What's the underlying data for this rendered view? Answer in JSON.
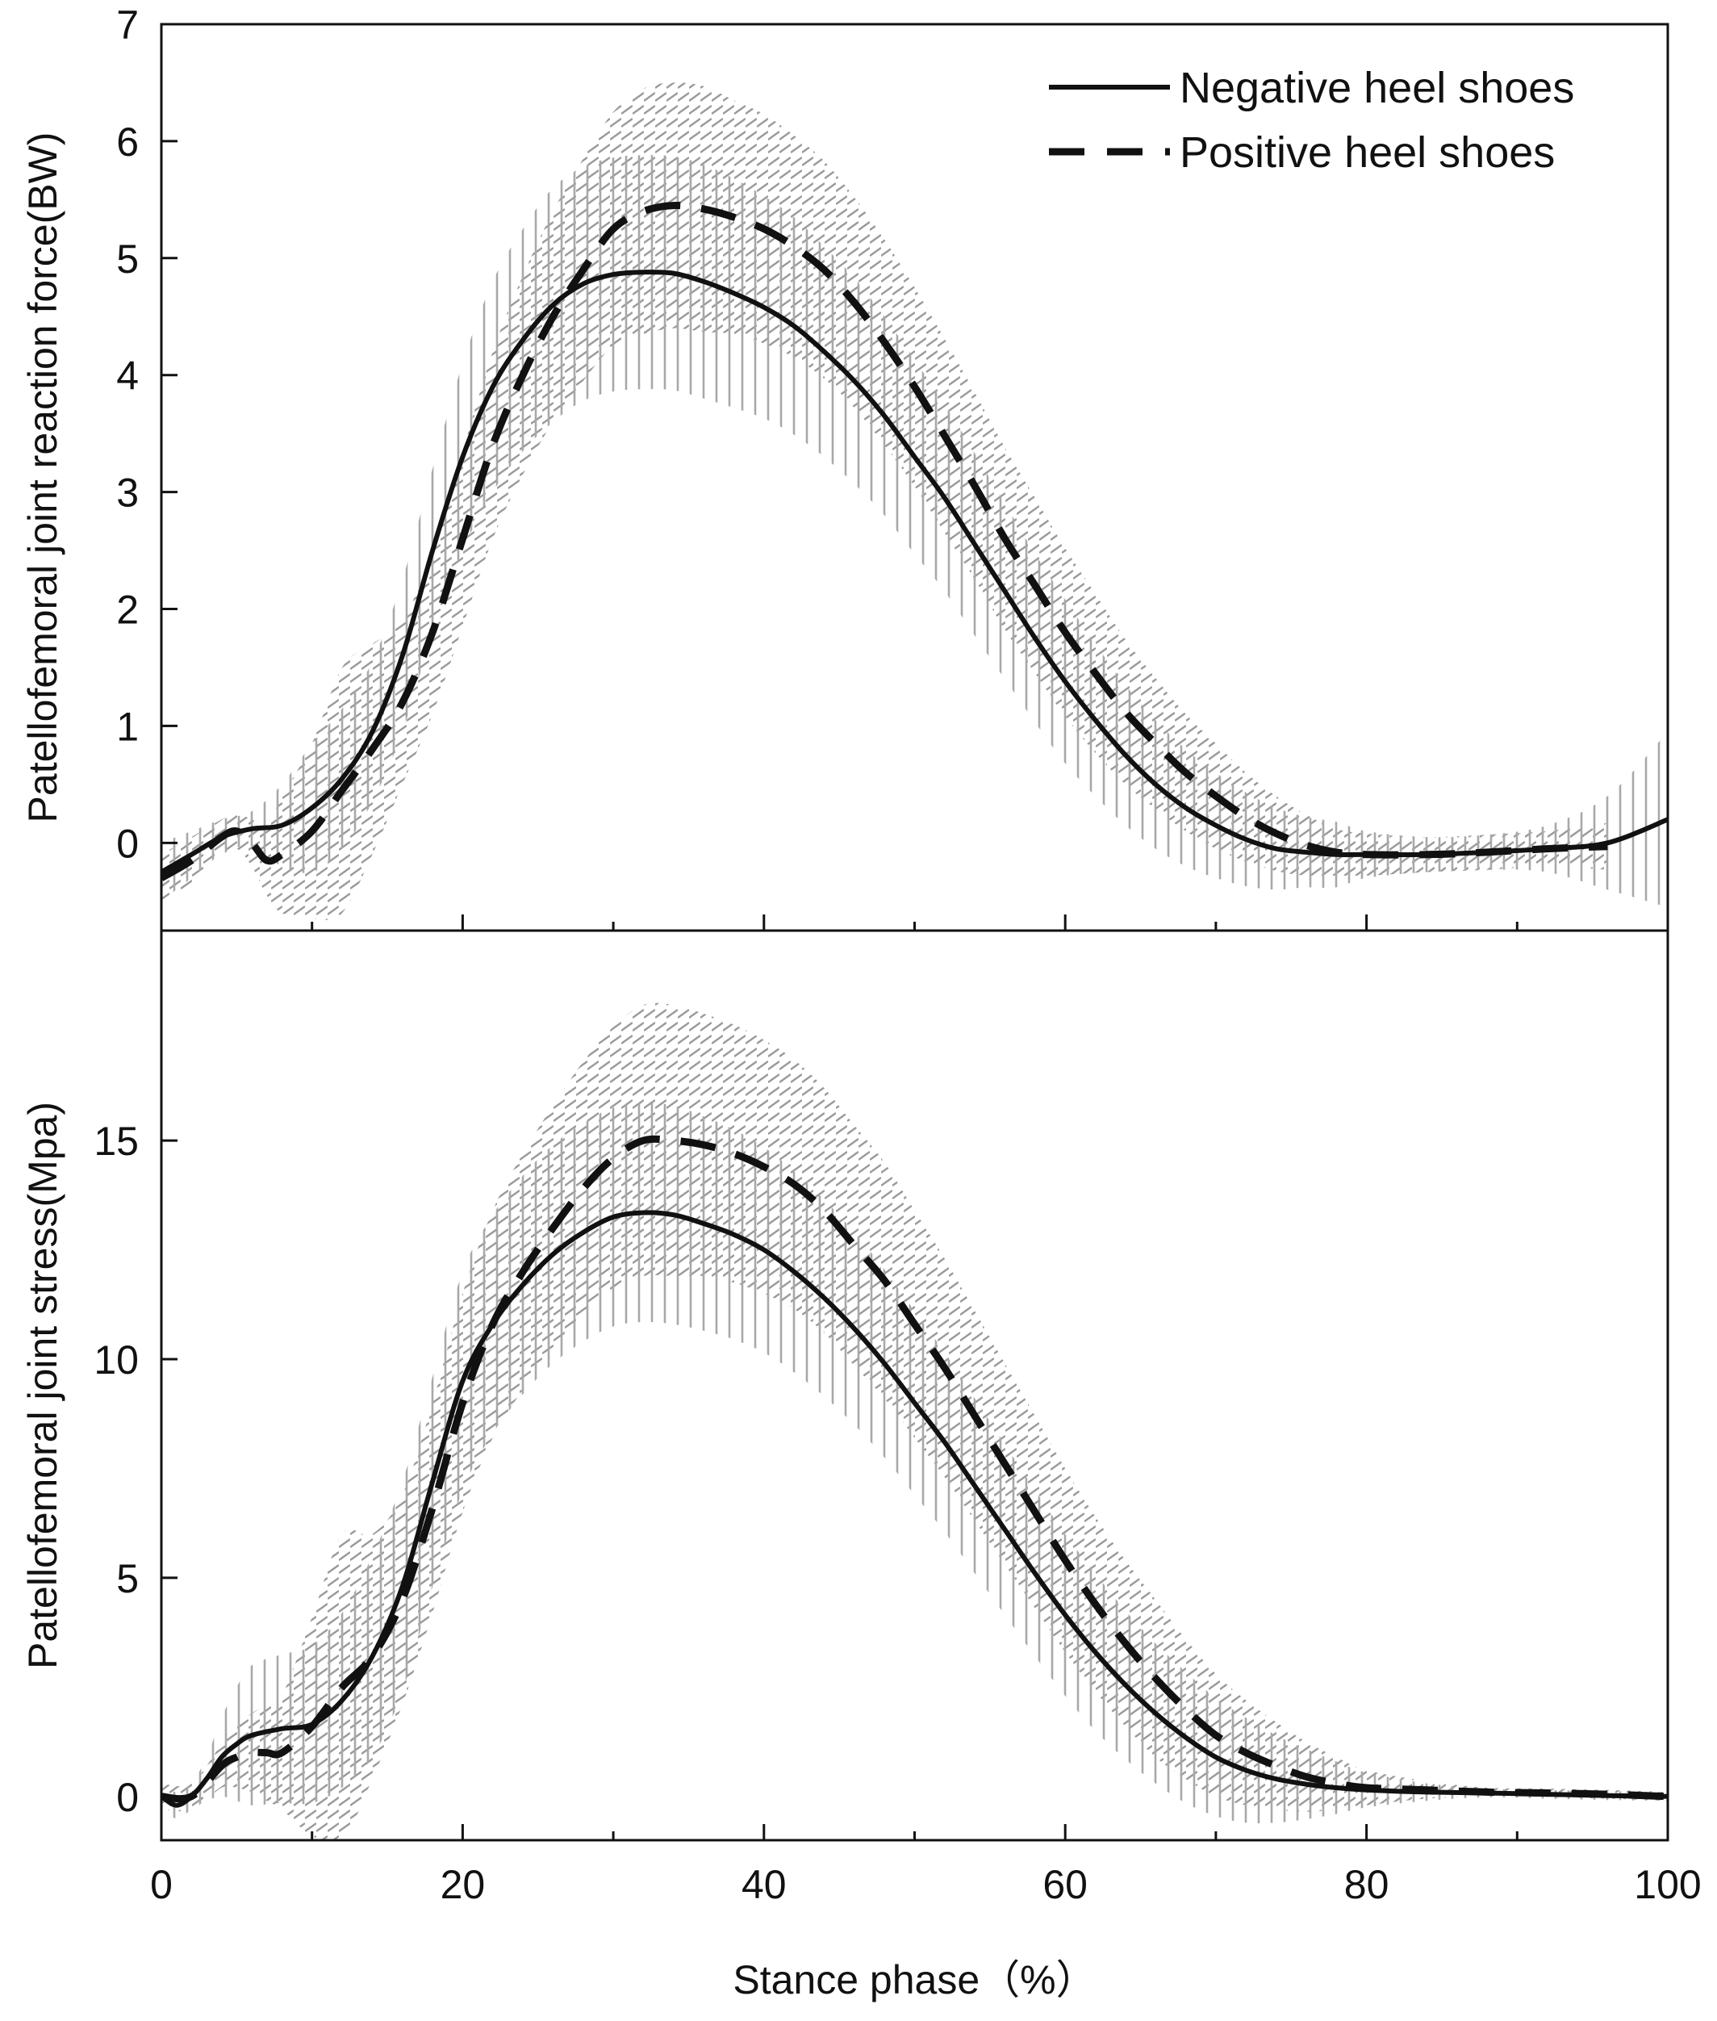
{
  "colors": {
    "line": "#111111",
    "band_negative": "#a8a8a8",
    "band_positive": "#9a9a9a",
    "background": "#ffffff"
  },
  "legend": {
    "position": "top-right",
    "items": [
      {
        "label": "Negative heel shoes",
        "style": "solid"
      },
      {
        "label": "Positive heel shoes",
        "style": "dashed"
      }
    ]
  },
  "x_axis": {
    "label": "Stance phase（%）",
    "range": [
      0,
      100
    ],
    "major_ticks": [
      0,
      20,
      40,
      60,
      80,
      100
    ],
    "minor_ticks": [
      10,
      30,
      50,
      70,
      90
    ]
  },
  "chart_data": [
    {
      "type": "line",
      "ylabel": "Patellofemoral joint reaction force(BW)",
      "xlim": [
        0,
        100
      ],
      "ylim": [
        -0.75,
        7
      ],
      "yticks": [
        0,
        1,
        2,
        3,
        4,
        5,
        6,
        7
      ],
      "grid": false,
      "shaded_error_bands": true,
      "series": [
        {
          "name": "Negative heel shoes",
          "style": "solid",
          "band": "vertical-hatch",
          "x": [
            0,
            2,
            4,
            6,
            8,
            10,
            12,
            14,
            16,
            18,
            20,
            22,
            24,
            26,
            28,
            30,
            32,
            34,
            36,
            38,
            40,
            42,
            44,
            46,
            48,
            50,
            52,
            54,
            56,
            58,
            60,
            62,
            64,
            66,
            68,
            70,
            72,
            74,
            76,
            78,
            80,
            84,
            88,
            92,
            96,
            100
          ],
          "y": [
            -0.25,
            -0.1,
            0.05,
            0.12,
            0.15,
            0.3,
            0.55,
            0.95,
            1.6,
            2.5,
            3.3,
            3.9,
            4.3,
            4.6,
            4.78,
            4.86,
            4.88,
            4.87,
            4.8,
            4.7,
            4.58,
            4.42,
            4.2,
            3.95,
            3.65,
            3.3,
            2.95,
            2.55,
            2.15,
            1.75,
            1.38,
            1.05,
            0.75,
            0.5,
            0.3,
            0.15,
            0.03,
            -0.05,
            -0.08,
            -0.1,
            -0.1,
            -0.1,
            -0.08,
            -0.05,
            0.0,
            0.2
          ],
          "sd": [
            0.25,
            0.2,
            0.15,
            0.15,
            0.35,
            0.55,
            0.6,
            0.6,
            0.65,
            0.7,
            0.8,
            0.9,
            0.95,
            1.0,
            1.0,
            1.0,
            1.0,
            1.0,
            1.0,
            0.98,
            0.95,
            0.93,
            0.9,
            0.88,
            0.85,
            0.83,
            0.8,
            0.78,
            0.75,
            0.72,
            0.7,
            0.65,
            0.6,
            0.55,
            0.5,
            0.45,
            0.4,
            0.35,
            0.3,
            0.28,
            0.2,
            0.15,
            0.15,
            0.2,
            0.4,
            0.75
          ]
        },
        {
          "name": "Positive heel shoes",
          "style": "dashed",
          "band": "diagonal-hatch",
          "x": [
            0,
            2,
            4,
            5,
            6,
            7,
            8,
            10,
            12,
            14,
            16,
            18,
            20,
            22,
            24,
            26,
            28,
            30,
            32,
            34,
            36,
            38,
            40,
            42,
            44,
            46,
            48,
            50,
            52,
            54,
            56,
            58,
            60,
            62,
            64,
            66,
            68,
            70,
            72,
            74,
            76,
            78,
            80,
            84,
            88,
            92,
            96
          ],
          "y": [
            -0.3,
            -0.15,
            0.05,
            0.1,
            0.0,
            -0.15,
            -0.1,
            0.1,
            0.45,
            0.8,
            1.2,
            1.8,
            2.6,
            3.4,
            4.0,
            4.5,
            4.9,
            5.25,
            5.4,
            5.45,
            5.42,
            5.35,
            5.25,
            5.1,
            4.9,
            4.62,
            4.28,
            3.9,
            3.48,
            3.05,
            2.6,
            2.2,
            1.8,
            1.45,
            1.12,
            0.85,
            0.6,
            0.4,
            0.22,
            0.08,
            -0.02,
            -0.08,
            -0.1,
            -0.1,
            -0.08,
            -0.05,
            -0.03
          ],
          "sd": [
            0.2,
            0.2,
            0.15,
            0.15,
            0.2,
            0.3,
            0.5,
            0.75,
            1.05,
            0.9,
            0.7,
            0.7,
            0.75,
            0.8,
            0.85,
            0.9,
            0.95,
            1.0,
            1.05,
            1.05,
            1.05,
            1.0,
            0.98,
            0.95,
            0.93,
            0.9,
            0.88,
            0.85,
            0.83,
            0.8,
            0.78,
            0.75,
            0.72,
            0.68,
            0.62,
            0.56,
            0.5,
            0.45,
            0.38,
            0.32,
            0.26,
            0.2,
            0.18,
            0.15,
            0.15,
            0.15,
            0.2
          ]
        }
      ]
    },
    {
      "type": "line",
      "ylabel": "Patellofemoral joint stress(Mpa)",
      "xlim": [
        0,
        100
      ],
      "ylim": [
        -1,
        19.8
      ],
      "yticks": [
        0,
        5,
        10,
        15
      ],
      "grid": false,
      "shaded_error_bands": true,
      "series": [
        {
          "name": "Negative heel shoes",
          "style": "solid",
          "band": "vertical-hatch",
          "x": [
            0,
            1,
            2,
            3,
            4,
            5,
            6,
            8,
            10,
            12,
            14,
            16,
            18,
            20,
            22,
            24,
            26,
            28,
            30,
            32,
            34,
            36,
            38,
            40,
            42,
            44,
            46,
            48,
            50,
            52,
            54,
            56,
            58,
            60,
            62,
            64,
            66,
            68,
            70,
            72,
            74,
            76,
            78,
            80,
            84,
            88,
            92,
            96,
            100
          ],
          "y": [
            0.0,
            -0.2,
            0.0,
            0.4,
            0.9,
            1.2,
            1.4,
            1.55,
            1.65,
            2.2,
            3.2,
            4.8,
            7.2,
            9.5,
            10.8,
            11.7,
            12.4,
            12.9,
            13.25,
            13.35,
            13.3,
            13.1,
            12.85,
            12.5,
            12.0,
            11.4,
            10.7,
            9.9,
            9.0,
            8.1,
            7.1,
            6.1,
            5.1,
            4.15,
            3.3,
            2.55,
            1.9,
            1.35,
            0.9,
            0.6,
            0.4,
            0.28,
            0.2,
            0.15,
            0.1,
            0.08,
            0.05,
            0.02,
            0.0
          ],
          "sd": [
            0.3,
            0.3,
            0.3,
            0.5,
            0.9,
            1.3,
            1.6,
            1.7,
            1.8,
            2.0,
            2.3,
            2.4,
            2.4,
            2.5,
            2.5,
            2.5,
            2.5,
            2.5,
            2.5,
            2.5,
            2.5,
            2.45,
            2.4,
            2.35,
            2.3,
            2.25,
            2.2,
            2.15,
            2.1,
            2.05,
            2.0,
            1.95,
            1.9,
            1.85,
            1.8,
            1.7,
            1.6,
            1.5,
            1.35,
            1.2,
            1.0,
            0.8,
            0.6,
            0.4,
            0.2,
            0.1,
            0.1,
            0.1,
            0.1
          ]
        },
        {
          "name": "Positive heel shoes",
          "style": "dashed",
          "band": "diagonal-hatch",
          "x": [
            0,
            2,
            4,
            5,
            6,
            7,
            8,
            10,
            12,
            14,
            16,
            18,
            20,
            22,
            24,
            26,
            28,
            30,
            32,
            34,
            36,
            38,
            40,
            42,
            44,
            46,
            48,
            50,
            52,
            54,
            56,
            58,
            60,
            62,
            64,
            66,
            68,
            70,
            72,
            74,
            76,
            78,
            80,
            84,
            88,
            92,
            96,
            100
          ],
          "y": [
            0.0,
            0.0,
            0.7,
            0.9,
            1.0,
            1.0,
            1.0,
            1.6,
            2.5,
            3.2,
            4.5,
            6.6,
            9.0,
            10.8,
            12.0,
            13.0,
            13.9,
            14.6,
            15.0,
            15.0,
            14.9,
            14.7,
            14.4,
            14.0,
            13.4,
            12.6,
            11.8,
            10.8,
            9.8,
            8.7,
            7.6,
            6.5,
            5.4,
            4.4,
            3.5,
            2.7,
            2.0,
            1.4,
            1.0,
            0.7,
            0.45,
            0.3,
            0.2,
            0.15,
            0.1,
            0.08,
            0.05,
            0.0
          ],
          "sd": [
            0.3,
            0.3,
            0.5,
            0.7,
            0.9,
            1.1,
            1.3,
            2.5,
            3.5,
            2.8,
            2.4,
            2.4,
            2.5,
            2.6,
            2.7,
            2.8,
            2.9,
            3.0,
            3.1,
            3.1,
            3.0,
            2.95,
            2.9,
            2.85,
            2.8,
            2.75,
            2.7,
            2.6,
            2.5,
            2.4,
            2.3,
            2.2,
            2.1,
            2.0,
            1.9,
            1.8,
            1.6,
            1.4,
            1.2,
            1.0,
            0.8,
            0.6,
            0.4,
            0.2,
            0.1,
            0.1,
            0.1,
            0.1
          ]
        }
      ]
    }
  ]
}
